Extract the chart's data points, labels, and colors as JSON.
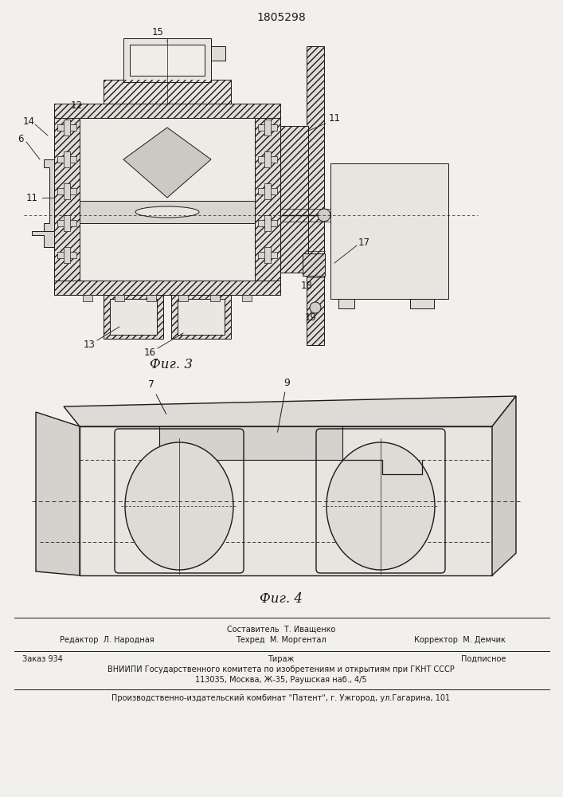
{
  "patent_number": "1805298",
  "background_color": "#f2f0ec",
  "fig3_label": "Фиг. 3",
  "fig4_label": "Фиг. 4",
  "footer_sestavitel": "Составитель  Т. Иващенко",
  "footer_line1_left": "Редактор  Л. Народная",
  "footer_line1_center": "Техред  М. Моргентал",
  "footer_line1_right": "Корректор  М. Демчик",
  "footer_zakaz": "Заказ 934",
  "footer_tirazh": "Тираж",
  "footer_podpisnoe": "Подписное",
  "footer_vniiipi": "ВНИИПИ Государственного комитета по изобретениям и открытиям при ГКНТ СССР",
  "footer_address": "113035, Москва, Ж-35, Раушская наб., 4/5",
  "footer_proizv": "Производственно-издательский комбинат \"Патент\", г. Ужгород, ул.Гагарина, 101",
  "text_color": "#1a1a1a",
  "line_color": "#1a1a1a"
}
